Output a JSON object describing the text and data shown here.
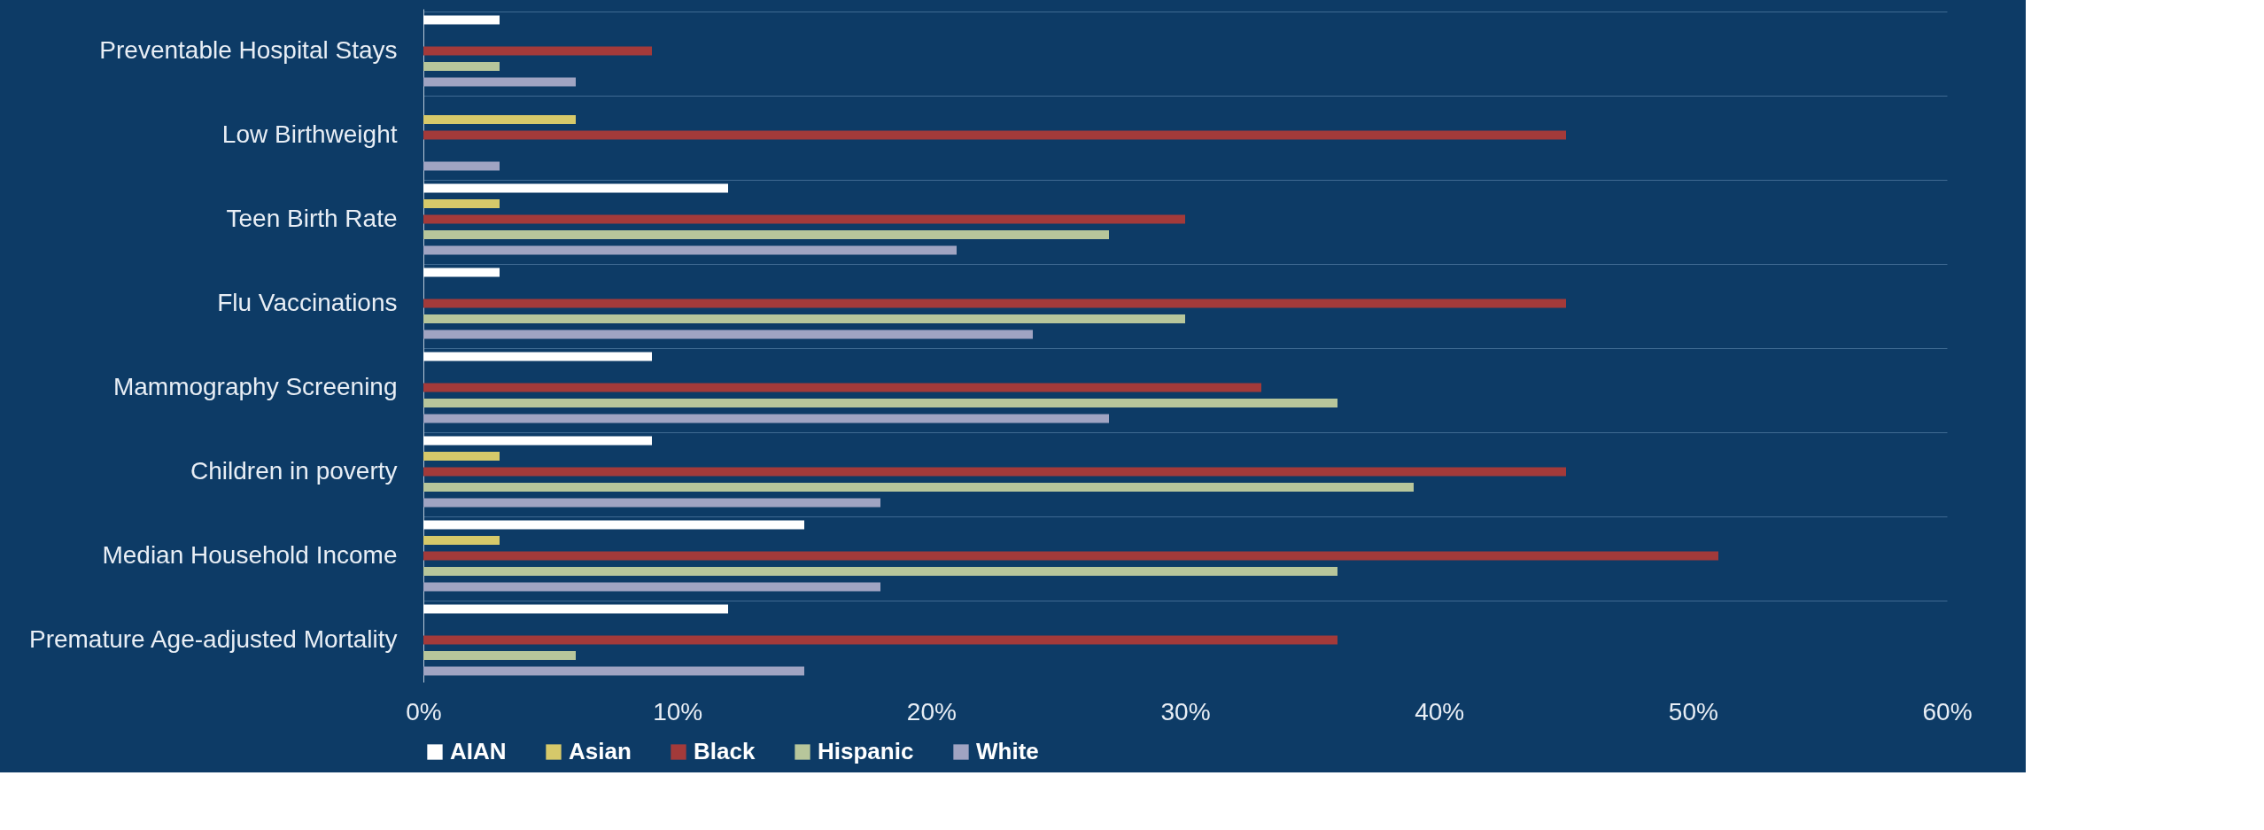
{
  "chart_data": {
    "type": "bar",
    "orientation": "horizontal",
    "categories": [
      "Preventable Hospital Stays",
      "Low Birthweight",
      "Teen Birth Rate",
      "Flu Vaccinations",
      "Mammography Screening",
      "Children in poverty",
      "Median Household Income",
      "Premature Age-adjusted Mortality"
    ],
    "series": [
      {
        "name": "AIAN",
        "color": "#ffffff",
        "values": [
          3,
          null,
          12,
          3,
          9,
          9,
          15,
          12
        ]
      },
      {
        "name": "Asian",
        "color": "#d6c96a",
        "values": [
          null,
          6,
          3,
          null,
          null,
          3,
          3,
          null
        ]
      },
      {
        "name": "Black",
        "color": "#a33a3a",
        "values": [
          9,
          45,
          30,
          45,
          33,
          45,
          51,
          36
        ]
      },
      {
        "name": "Hispanic",
        "color": "#b7c69b",
        "values": [
          3,
          null,
          27,
          30,
          36,
          39,
          36,
          6
        ]
      },
      {
        "name": "White",
        "color": "#a0a4c2",
        "values": [
          6,
          3,
          21,
          24,
          27,
          18,
          18,
          15
        ]
      }
    ],
    "xlim": [
      0,
      60
    ],
    "xticks": [
      {
        "value": 0,
        "label": "0%"
      },
      {
        "value": 10,
        "label": "10%"
      },
      {
        "value": 20,
        "label": "20%"
      },
      {
        "value": 30,
        "label": "30%"
      },
      {
        "value": 40,
        "label": "40%"
      },
      {
        "value": 50,
        "label": "50%"
      },
      {
        "value": 60,
        "label": "60%"
      }
    ],
    "grid": "y",
    "legend": "bottom"
  }
}
